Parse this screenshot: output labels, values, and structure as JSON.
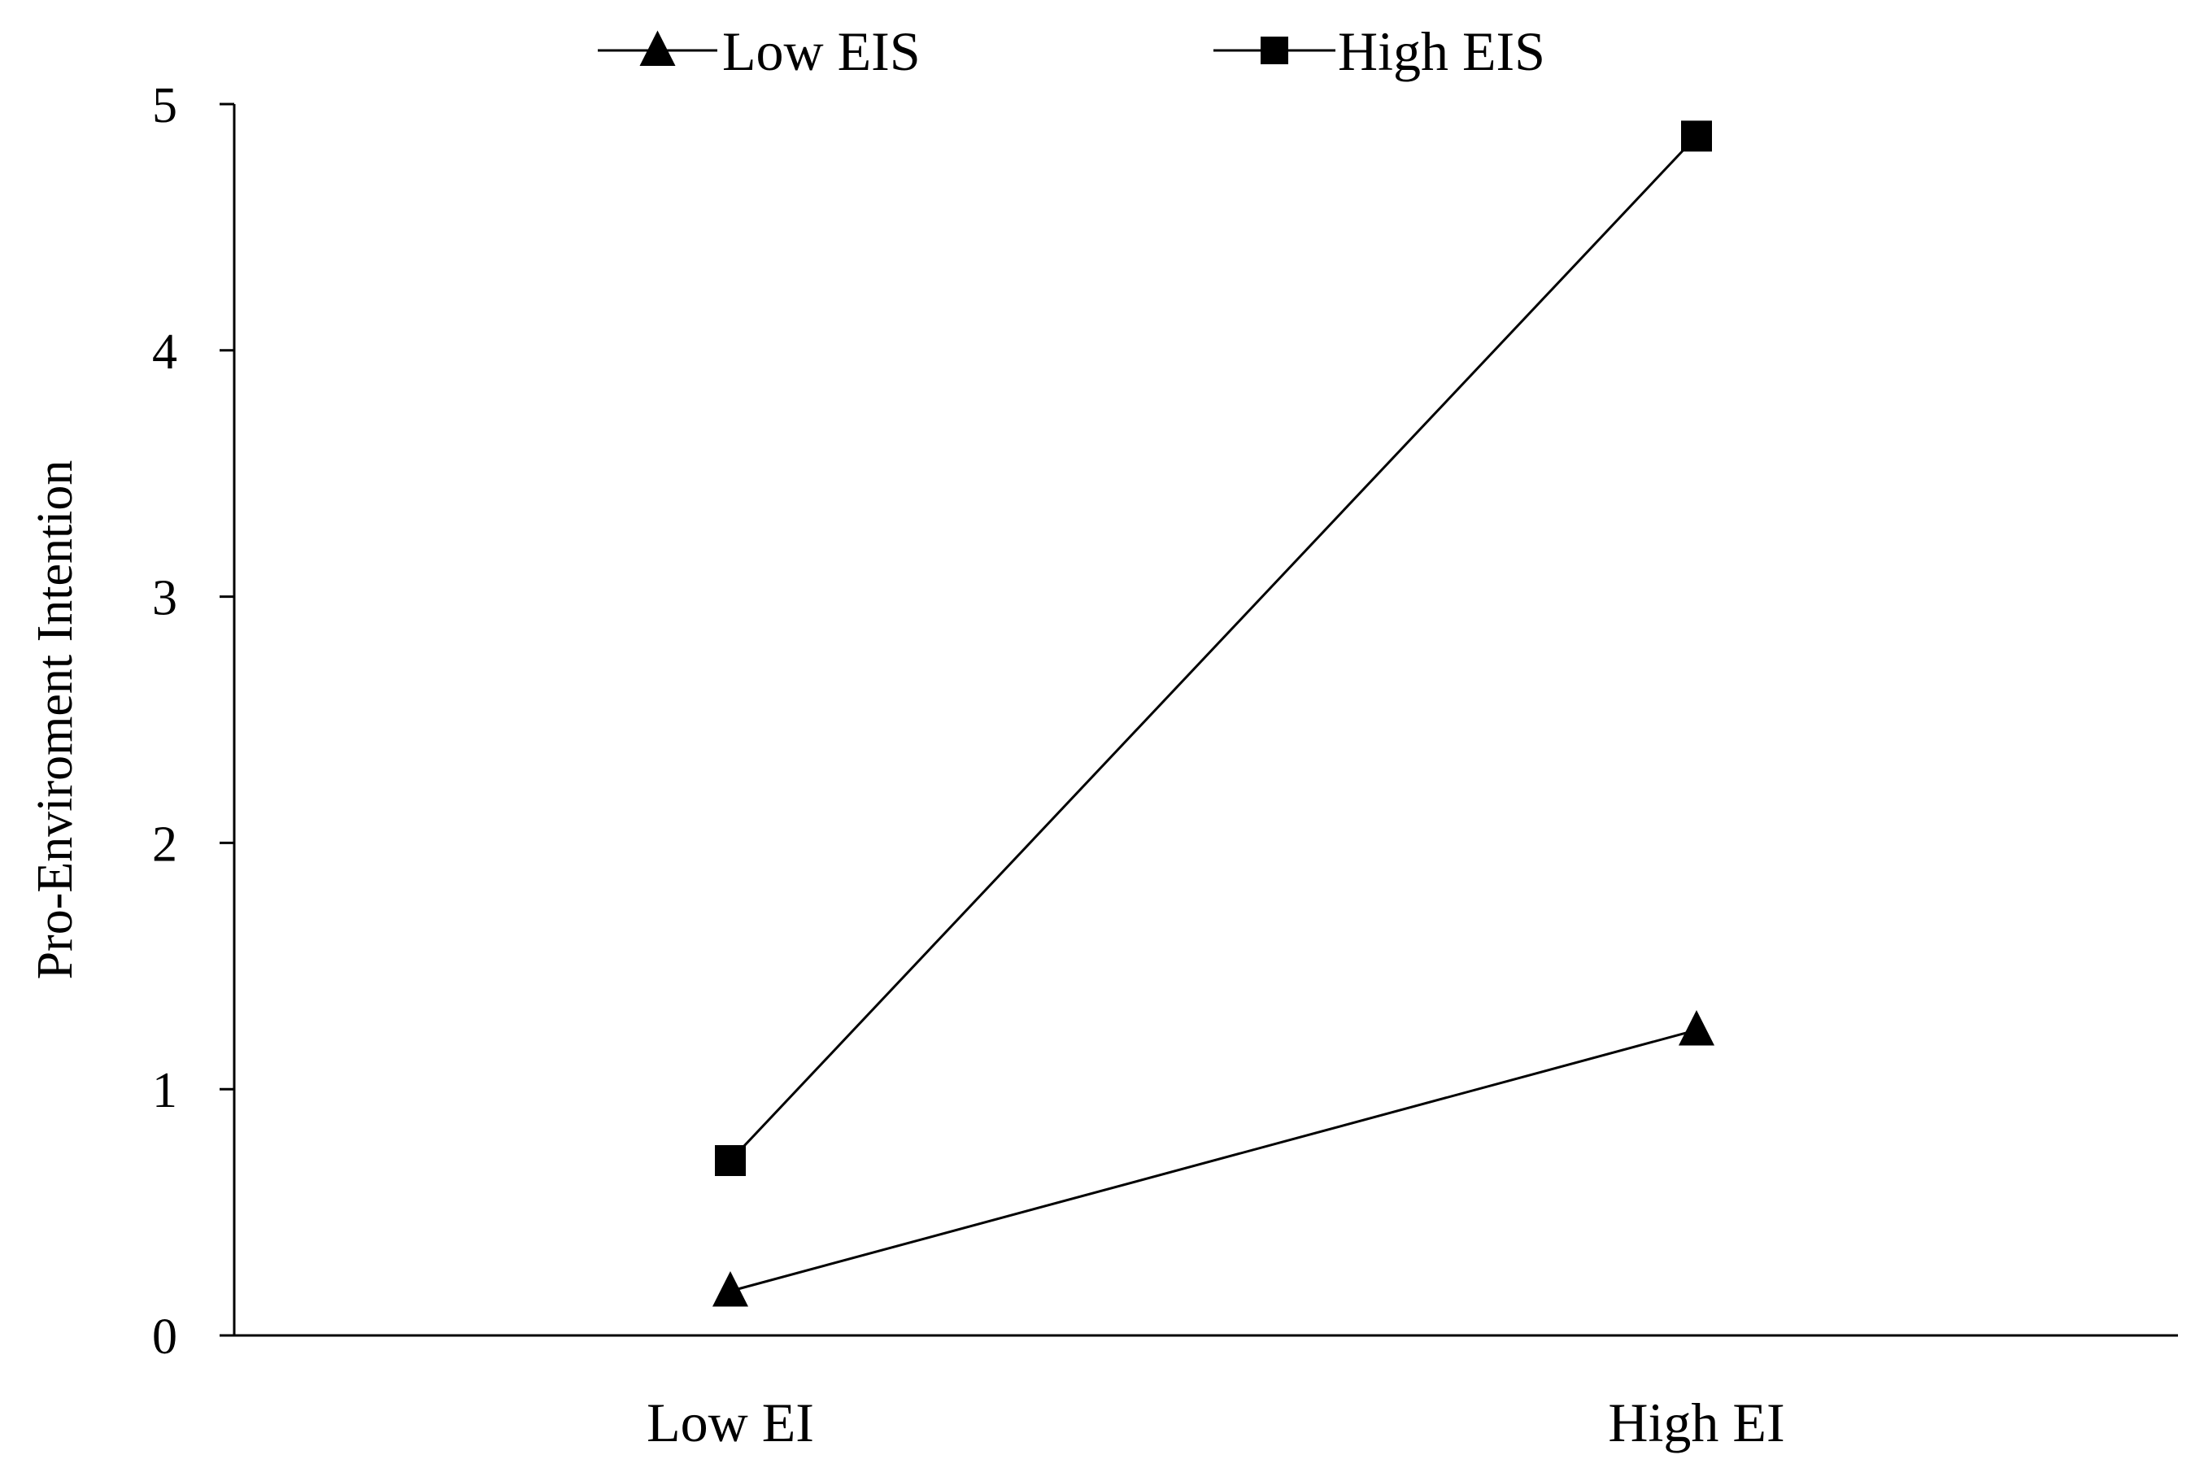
{
  "chart_data": {
    "type": "line",
    "title": "",
    "xlabel": "",
    "ylabel": "Pro-Enviroment Intention",
    "categories": [
      "Low EI",
      "High EI"
    ],
    "ylim": [
      0,
      5
    ],
    "yticks": [
      0,
      1,
      2,
      3,
      4,
      5
    ],
    "ytick_labels": [
      "0",
      "1",
      "2",
      "3",
      "4",
      "5"
    ],
    "grid": false,
    "legend_placement": "top",
    "series": [
      {
        "name": "Low EIS",
        "marker": "triangle",
        "color": "#000000",
        "values": [
          0.18,
          1.24
        ]
      },
      {
        "name": "High EIS",
        "marker": "square",
        "color": "#000000",
        "values": [
          0.71,
          4.87
        ]
      }
    ]
  }
}
